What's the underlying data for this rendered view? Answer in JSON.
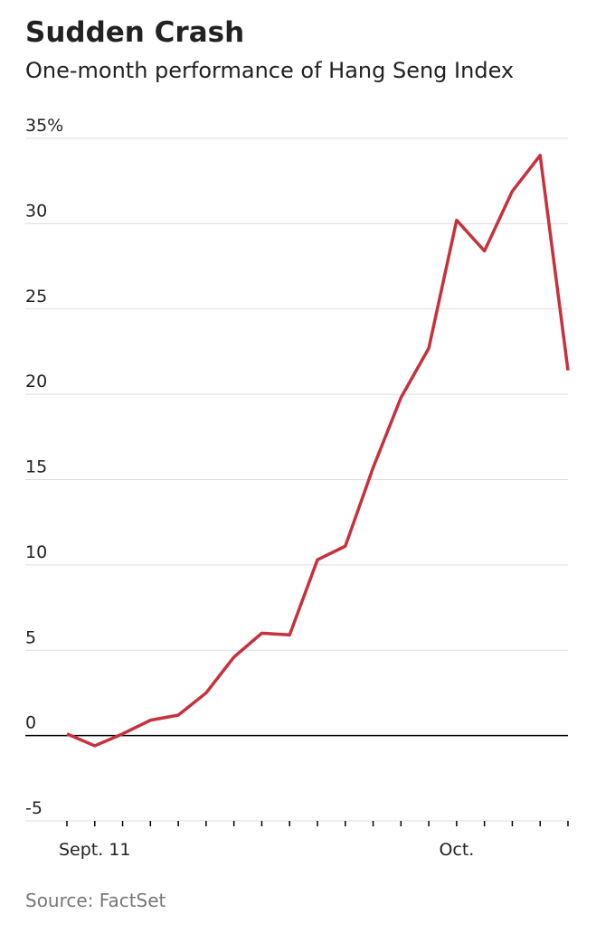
{
  "chart_data": {
    "type": "line",
    "title": "Sudden Crash",
    "subtitle": "One-month performance of Hang Seng Index",
    "source": "Source: FactSet",
    "categories": [
      null,
      "Sept. 11",
      null,
      null,
      null,
      null,
      null,
      null,
      null,
      null,
      null,
      null,
      null,
      null,
      "Oct.",
      null,
      null,
      null,
      null
    ],
    "series": [
      {
        "name": "Hang Seng Index",
        "color": "#c8303c",
        "values": [
          0.1,
          -0.6,
          0.1,
          0.9,
          1.2,
          2.5,
          4.6,
          6.0,
          5.9,
          10.3,
          11.1,
          15.7,
          19.8,
          22.7,
          30.2,
          28.4,
          31.9,
          34.0,
          21.4
        ]
      }
    ],
    "ylim": [
      -5,
      35
    ],
    "yticks": [
      -5,
      0,
      5,
      10,
      15,
      20,
      25,
      30,
      {
        "value": 35,
        "label": "35%"
      }
    ],
    "grid": true
  }
}
